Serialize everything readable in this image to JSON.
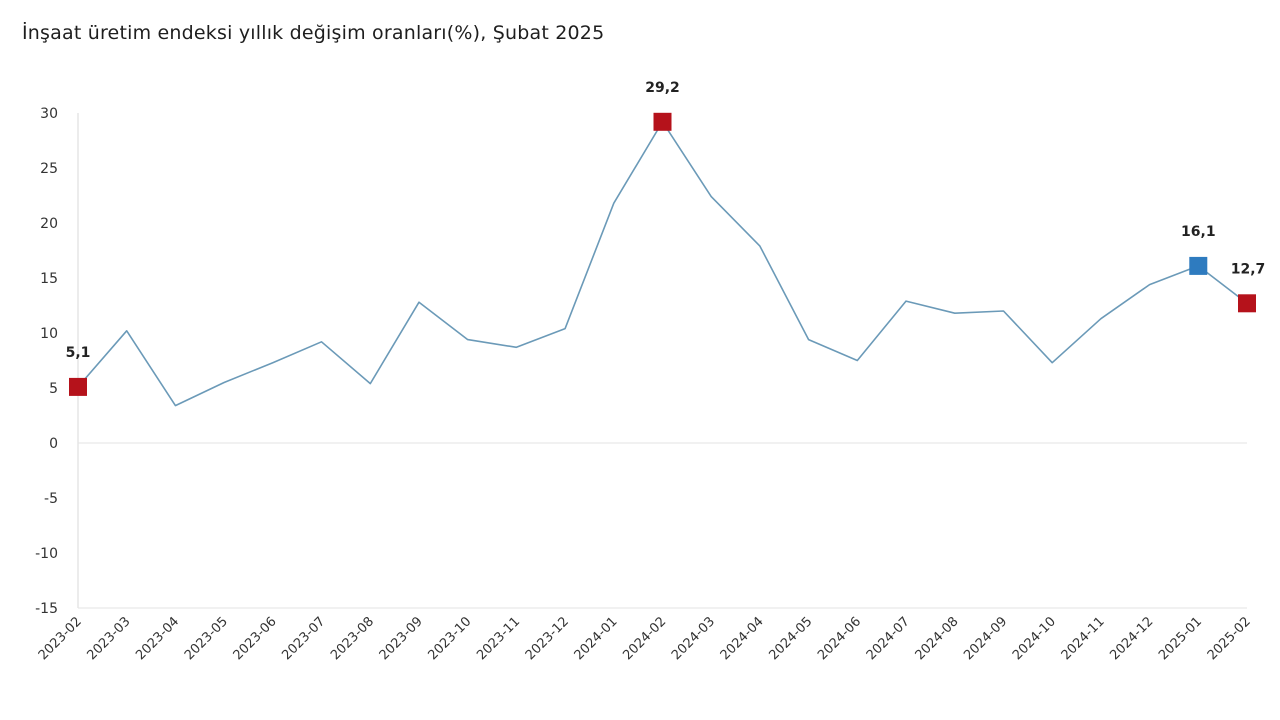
{
  "chart_data": {
    "type": "line",
    "title": "İnşaat üretim endeksi yıllık değişim oranları(%), Şubat 2025",
    "xlabel": "",
    "ylabel": "",
    "ylim": [
      -15,
      30
    ],
    "yticks": [
      30,
      25,
      20,
      15,
      10,
      5,
      0,
      -5,
      -10,
      -15
    ],
    "grid": false,
    "categories": [
      "2023-02",
      "2023-03",
      "2023-04",
      "2023-05",
      "2023-06",
      "2023-07",
      "2023-08",
      "2023-09",
      "2023-10",
      "2023-11",
      "2023-12",
      "2024-01",
      "2024-02",
      "2024-03",
      "2024-04",
      "2024-05",
      "2024-06",
      "2024-07",
      "2024-08",
      "2024-09",
      "2024-10",
      "2024-11",
      "2024-12",
      "2025-01",
      "2025-02"
    ],
    "series": [
      {
        "values": [
          5.1,
          10.2,
          3.4,
          5.5,
          7.3,
          9.2,
          5.4,
          12.8,
          9.4,
          8.7,
          10.4,
          21.8,
          29.2,
          22.4,
          17.9,
          9.4,
          7.5,
          12.9,
          11.8,
          12.0,
          7.3,
          11.3,
          14.4,
          16.1,
          12.7
        ],
        "line_color": "#6b9ab8"
      }
    ],
    "highlighted_points": [
      {
        "category": "2023-02",
        "value": 5.1,
        "label": "5,1",
        "color": "#b5121b"
      },
      {
        "category": "2024-02",
        "value": 29.2,
        "label": "29,2",
        "color": "#b5121b"
      },
      {
        "category": "2025-01",
        "value": 16.1,
        "label": "16,1",
        "color": "#2e7bbf"
      },
      {
        "category": "2025-02",
        "value": 12.7,
        "label": "12,7",
        "color": "#b5121b"
      }
    ]
  }
}
